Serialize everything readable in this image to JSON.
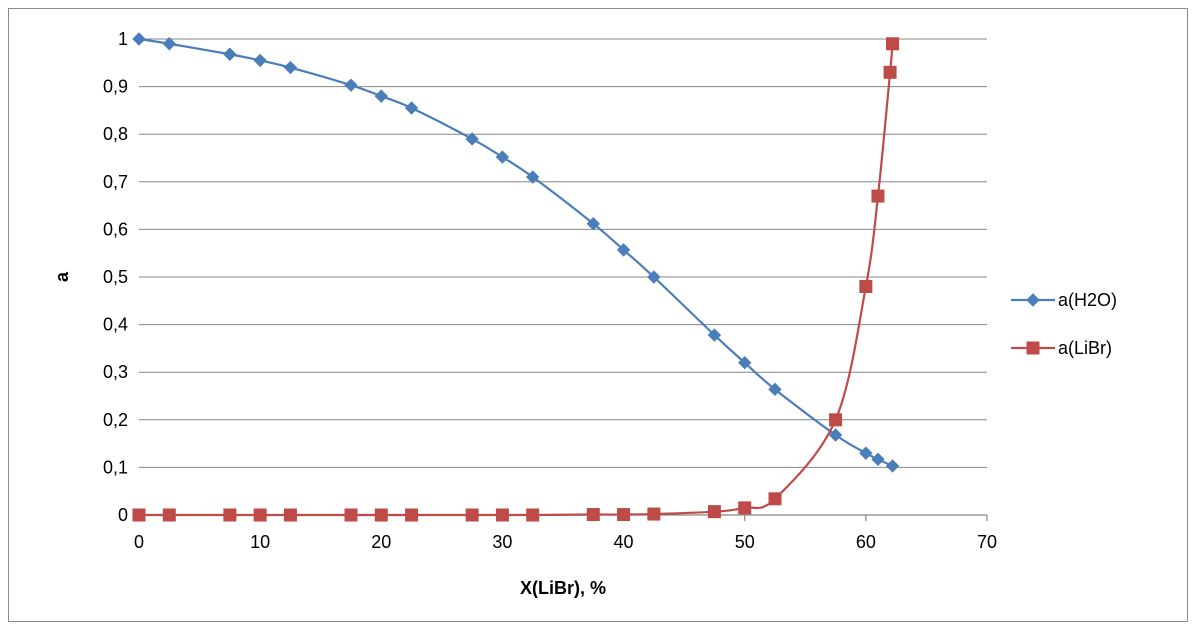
{
  "chart_data": {
    "type": "line",
    "title": "",
    "xlabel": "X(LiBr), %",
    "ylabel": "a",
    "xlim": [
      0,
      70
    ],
    "ylim": [
      0,
      1
    ],
    "x_ticks": [
      "0",
      "10",
      "20",
      "30",
      "40",
      "50",
      "60",
      "70"
    ],
    "y_ticks": [
      "0",
      "0,1",
      "0,2",
      "0,3",
      "0,4",
      "0,5",
      "0,6",
      "0,7",
      "0,8",
      "0,9",
      "1"
    ],
    "grid": "horizontal",
    "legend_position": "right",
    "series": [
      {
        "name": "a(H2O)",
        "color": "#4a7ebb",
        "marker": "diamond",
        "x": [
          0,
          2.5,
          7.5,
          10,
          12.5,
          17.5,
          20,
          22.5,
          27.5,
          30,
          32.5,
          37.5,
          40,
          42.5,
          47.5,
          50,
          52.5,
          57.5,
          60,
          61,
          62.2
        ],
        "y": [
          1.0,
          0.99,
          0.968,
          0.955,
          0.94,
          0.903,
          0.88,
          0.855,
          0.79,
          0.752,
          0.71,
          0.612,
          0.557,
          0.5,
          0.378,
          0.32,
          0.264,
          0.168,
          0.13,
          0.117,
          0.103
        ]
      },
      {
        "name": "a(LiBr)",
        "color": "#be4b48",
        "marker": "square",
        "x": [
          0,
          2.5,
          7.5,
          10,
          12.5,
          17.5,
          20,
          22.5,
          27.5,
          30,
          32.5,
          37.5,
          40,
          42.5,
          47.5,
          50,
          52.5,
          57.5,
          60,
          61,
          62,
          62.2
        ],
        "y": [
          0,
          0,
          0,
          0,
          0,
          0,
          0,
          0,
          0,
          0,
          0,
          0.001,
          0.001,
          0.002,
          0.007,
          0.015,
          0.034,
          0.2,
          0.48,
          0.67,
          0.93,
          0.99
        ]
      }
    ]
  }
}
